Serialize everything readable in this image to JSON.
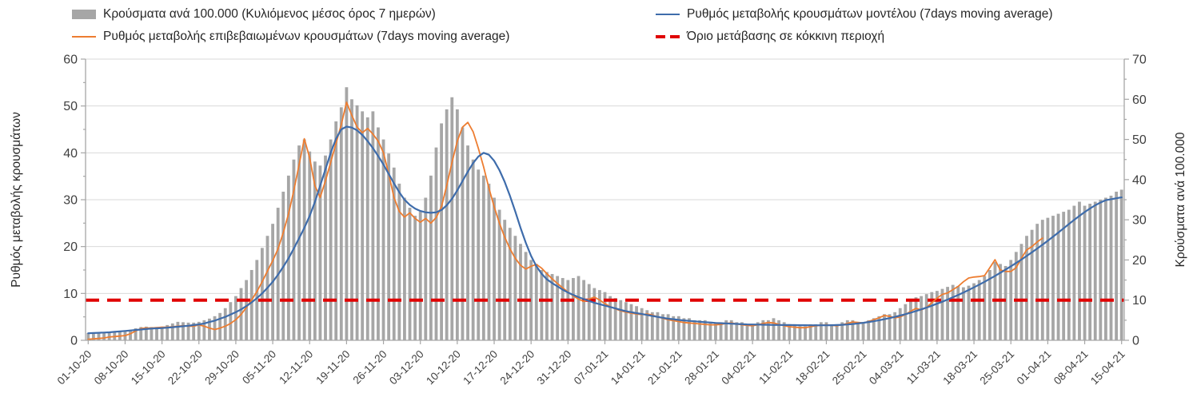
{
  "chart_data": {
    "type": "combo (daily bars + lines, dual y-axis)",
    "title": "",
    "x_axis": {
      "unit": "daily categories, weekly tick labels",
      "n_days": 197,
      "tick_every": 7,
      "tick_labels": [
        "01-10-20",
        "08-10-20",
        "15-10-20",
        "22-10-20",
        "29-10-20",
        "05-11-20",
        "12-11-20",
        "19-11-20",
        "26-11-20",
        "03-12-20",
        "10-12-20",
        "17-12-20",
        "24-12-20",
        "31-12-20",
        "07-01-21",
        "14-01-21",
        "21-01-21",
        "28-01-21",
        "04-02-21",
        "11-02-21",
        "18-02-21",
        "25-02-21",
        "04-03-21",
        "11-03-21",
        "18-03-21",
        "25-03-21",
        "01-04-21",
        "08-04-21",
        "15-04-21"
      ]
    },
    "axes": {
      "left": {
        "title": "Ρυθμός μεταβολής κρουσμάτων",
        "min": 0,
        "max": 60,
        "major_step": 10,
        "minor_step": 5
      },
      "right": {
        "title": "Κρούσματα ανά 100.000",
        "min": 0,
        "max": 70,
        "major_step": 10,
        "minor_step": 5
      }
    },
    "grid": {
      "horizontal": true,
      "color": "#d9d9d9"
    },
    "series": [
      {
        "name": "Κρούσματα ανά 100.000 (Κυλιόμενος μέσος όρος 7 ημερών)",
        "kind": "bar",
        "axis": "right",
        "color": "#a6a6a6",
        "values": [
          1.8,
          1.8,
          1.9,
          2.0,
          2.0,
          2.1,
          2.2,
          2.3,
          2.6,
          3.0,
          3.3,
          3.4,
          3.3,
          3.3,
          3.4,
          3.8,
          4.2,
          4.6,
          4.5,
          4.4,
          4.4,
          4.6,
          5.0,
          5.4,
          6.0,
          6.8,
          8.0,
          9.5,
          11.0,
          13.0,
          15.0,
          17.5,
          20.0,
          23.0,
          26.0,
          29.0,
          33.0,
          37.0,
          41.0,
          45.0,
          48.5,
          50.0,
          47.0,
          44.5,
          43.5,
          46.0,
          50.0,
          54.5,
          58.0,
          63.0,
          60.0,
          58.5,
          57.0,
          55.5,
          57.0,
          53.0,
          50.0,
          46.5,
          43.0,
          39.0,
          35.5,
          33.0,
          31.0,
          32.0,
          35.5,
          41.0,
          48.0,
          54.0,
          57.5,
          60.5,
          57.5,
          53.0,
          48.5,
          45.0,
          42.5,
          41.0,
          39.0,
          35.5,
          32.5,
          30.0,
          28.0,
          26.0,
          24.0,
          22.0,
          20.0,
          19.0,
          17.5,
          17.0,
          16.5,
          16.0,
          15.5,
          15.0,
          15.5,
          16.0,
          15.0,
          14.0,
          13.0,
          12.5,
          12.0,
          11.0,
          10.5,
          10.0,
          9.5,
          9.0,
          8.5,
          8.0,
          7.5,
          7.0,
          7.0,
          6.5,
          6.5,
          6.0,
          6.0,
          5.5,
          5.5,
          5.0,
          5.0,
          5.0,
          4.5,
          4.5,
          4.5,
          5.0,
          5.0,
          4.5,
          4.5,
          4.0,
          4.0,
          4.5,
          5.0,
          5.0,
          5.5,
          5.0,
          4.5,
          4.0,
          4.0,
          3.5,
          3.5,
          4.0,
          4.0,
          4.5,
          4.5,
          4.0,
          4.0,
          4.5,
          5.0,
          5.0,
          4.5,
          4.5,
          5.0,
          5.5,
          6.0,
          6.5,
          6.5,
          7.0,
          8.0,
          9.0,
          10.0,
          10.7,
          11.0,
          11.5,
          12.0,
          12.3,
          12.8,
          13.3,
          13.8,
          13.5,
          13.2,
          13.6,
          14.2,
          15.0,
          16.0,
          17.5,
          19.5,
          19.0,
          18.5,
          20.0,
          22.0,
          24.0,
          26.0,
          27.5,
          29.0,
          30.0,
          30.5,
          31.0,
          31.5,
          32.0,
          32.5,
          33.5,
          34.5,
          33.5,
          34.0,
          34.5,
          35.0,
          35.5,
          36.0,
          37.0,
          37.5
        ]
      },
      {
        "name": "Ρυθμός μεταβολής επιβεβαιωμένων κρουσμάτων (7days moving average)",
        "kind": "line",
        "axis": "left",
        "color": "#ED7D31",
        "values": [
          0.2,
          0.3,
          0.4,
          0.5,
          0.7,
          0.8,
          0.9,
          1.0,
          1.4,
          2.0,
          2.5,
          2.6,
          2.6,
          2.7,
          2.8,
          2.8,
          2.9,
          3.0,
          3.1,
          3.0,
          3.0,
          3.3,
          3.0,
          2.6,
          2.3,
          2.6,
          3.0,
          3.6,
          4.4,
          5.5,
          7.0,
          8.6,
          10.4,
          12.5,
          14.8,
          17.0,
          19.5,
          23.0,
          27.0,
          32.0,
          37.5,
          43.0,
          39.0,
          33.0,
          30.5,
          34.0,
          38.0,
          42.0,
          46.0,
          50.8,
          48.0,
          45.5,
          44.3,
          45.2,
          44.0,
          42.5,
          40.0,
          35.5,
          30.5,
          27.5,
          26.3,
          27.2,
          26.0,
          25.2,
          26.0,
          25.0,
          26.2,
          28.5,
          33.0,
          38.0,
          42.5,
          45.5,
          46.5,
          44.5,
          41.0,
          37.0,
          32.5,
          28.5,
          25.0,
          22.0,
          19.5,
          17.5,
          16.0,
          15.2,
          15.8,
          16.2,
          15.4,
          14.2,
          13.1,
          12.1,
          11.2,
          10.3,
          9.5,
          8.8,
          8.3,
          8.8,
          9.2,
          8.6,
          7.8,
          7.2,
          6.7,
          6.3,
          6.0,
          5.8,
          5.6,
          5.5,
          5.6,
          5.4,
          5.0,
          4.7,
          4.4,
          4.2,
          4.0,
          3.8,
          3.7,
          3.6,
          3.5,
          3.4,
          3.3,
          3.3,
          3.4,
          3.6,
          3.7,
          3.5,
          3.3,
          3.2,
          3.1,
          3.3,
          3.6,
          3.8,
          3.7,
          3.4,
          3.1,
          2.9,
          2.8,
          2.7,
          2.7,
          2.9,
          3.1,
          3.2,
          3.3,
          3.2,
          3.1,
          3.3,
          3.6,
          3.9,
          3.8,
          3.7,
          4.0,
          4.4,
          4.8,
          5.3,
          5.1,
          4.8,
          5.0,
          5.5,
          6.2,
          6.8,
          6.5,
          7.0,
          8.0,
          9.0,
          9.8,
          10.1,
          10.8,
          11.5,
          12.5,
          13.3,
          13.5,
          13.6,
          13.8,
          15.5,
          17.2,
          15.0,
          14.7,
          14.7,
          15.5,
          17.5,
          19.3,
          20.0,
          21.0,
          21.8
        ]
      },
      {
        "name": "Ρυθμός μεταβολής κρουσμάτων μοντέλου (7days moving average)",
        "kind": "line",
        "axis": "left",
        "color": "#3E6CAB",
        "values": [
          1.5,
          1.55,
          1.6,
          1.65,
          1.7,
          1.8,
          1.9,
          2.0,
          2.1,
          2.2,
          2.3,
          2.4,
          2.5,
          2.55,
          2.6,
          2.7,
          2.8,
          2.9,
          3.0,
          3.1,
          3.25,
          3.4,
          3.6,
          3.9,
          4.2,
          4.6,
          5.0,
          5.5,
          6.0,
          6.6,
          7.3,
          8.1,
          9.0,
          10.0,
          11.2,
          12.5,
          14.0,
          15.7,
          17.5,
          19.6,
          21.8,
          24.0,
          26.5,
          29.5,
          33.0,
          36.5,
          40.0,
          43.0,
          45.0,
          45.6,
          45.4,
          44.8,
          43.8,
          42.5,
          41.0,
          39.3,
          37.5,
          35.5,
          33.5,
          31.6,
          30.0,
          28.9,
          28.1,
          27.6,
          27.3,
          27.2,
          27.3,
          27.8,
          28.8,
          30.2,
          32.0,
          34.0,
          36.0,
          37.8,
          39.2,
          40.0,
          39.6,
          38.3,
          36.3,
          33.8,
          30.8,
          27.5,
          24.0,
          20.8,
          18.0,
          15.8,
          14.2,
          13.0,
          12.2,
          11.5,
          10.8,
          10.2,
          9.7,
          9.2,
          8.8,
          8.4,
          8.0,
          7.7,
          7.4,
          7.1,
          6.8,
          6.5,
          6.2,
          6.0,
          5.8,
          5.6,
          5.4,
          5.2,
          5.0,
          4.8,
          4.6,
          4.5,
          4.35,
          4.25,
          4.15,
          4.05,
          3.95,
          3.85,
          3.8,
          3.7,
          3.65,
          3.6,
          3.55,
          3.5,
          3.45,
          3.4,
          3.38,
          3.35,
          3.32,
          3.3,
          3.28,
          3.27,
          3.26,
          3.25,
          3.24,
          3.23,
          3.22,
          3.21,
          3.2,
          3.2,
          3.2,
          3.22,
          3.25,
          3.3,
          3.38,
          3.48,
          3.6,
          3.74,
          3.9,
          4.08,
          4.28,
          4.5,
          4.74,
          5.0,
          5.28,
          5.58,
          5.9,
          6.24,
          6.6,
          6.98,
          7.38,
          7.8,
          8.24,
          8.7,
          9.18,
          9.68,
          10.2,
          10.74,
          11.3,
          11.88,
          12.48,
          13.1,
          13.74,
          14.4,
          15.08,
          15.78,
          16.5,
          17.24,
          18.0,
          18.78,
          19.58,
          20.4,
          21.24,
          22.1,
          23.0,
          23.9,
          24.8,
          25.7,
          26.55,
          27.35,
          28.1,
          28.8,
          29.4,
          29.9,
          30.1,
          30.3,
          30.5
        ]
      },
      {
        "name": "Όριο μετάβασης σε κόκκινη περιοχή",
        "kind": "threshold",
        "axis": "right",
        "color": "#e00000",
        "value": 10
      }
    ],
    "legend_position": "top (two columns)"
  },
  "style": {
    "background": "#ffffff",
    "grid_color": "#d9d9d9",
    "axis_line_color": "#a6a6a6",
    "tick_label_color": "#404040",
    "legend_text_color": "#262626",
    "bar_color": "#a6a6a6",
    "confirmed_line_color": "#ED7D31",
    "model_line_color": "#3E6CAB",
    "threshold_color": "#e00000"
  }
}
